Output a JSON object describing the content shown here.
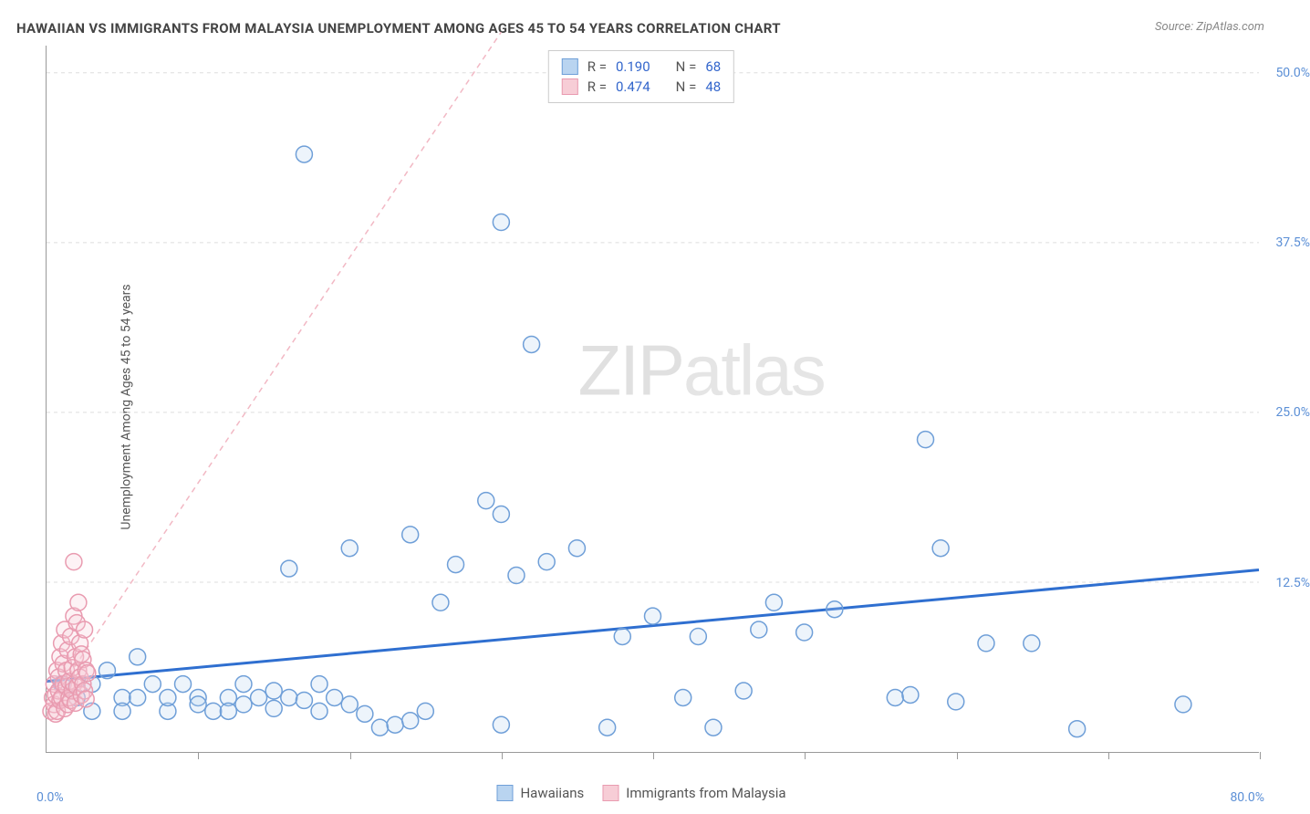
{
  "meta": {
    "title": "HAWAIIAN VS IMMIGRANTS FROM MALAYSIA UNEMPLOYMENT AMONG AGES 45 TO 54 YEARS CORRELATION CHART",
    "source_label": "Source: ZipAtlas.com",
    "y_axis_label": "Unemployment Among Ages 45 to 54 years",
    "watermark_bold": "ZIP",
    "watermark_light": "atlas"
  },
  "chart": {
    "type": "scatter",
    "background_color": "#ffffff",
    "grid_color": "#dddddd",
    "axis_color": "#999999",
    "marker_radius": 9,
    "marker_stroke_width": 1.5,
    "marker_fill_opacity": 0.25,
    "xlim": [
      0,
      80
    ],
    "ylim": [
      0,
      52
    ],
    "x_ticks": [
      10,
      20,
      30,
      40,
      50,
      60,
      70,
      80
    ],
    "x_min_label": "0.0%",
    "x_max_label": "80.0%",
    "y_ticks": [
      {
        "v": 12.5,
        "label": "12.5%"
      },
      {
        "v": 25.0,
        "label": "25.0%"
      },
      {
        "v": 37.5,
        "label": "37.5%"
      },
      {
        "v": 50.0,
        "label": "50.0%"
      }
    ],
    "y_label_color": "#5b8fd6",
    "label_fontsize": 14,
    "title_fontsize": 15
  },
  "legend_top": {
    "rows": [
      {
        "swatch_fill": "#b9d4f0",
        "swatch_stroke": "#6f9fd8",
        "r_label": "R =",
        "r_value": "0.190",
        "n_label": "N =",
        "n_value": "68"
      },
      {
        "swatch_fill": "#f7cdd6",
        "swatch_stroke": "#e99bb0",
        "r_label": "R =",
        "r_value": "0.474",
        "n_label": "N =",
        "n_value": "48"
      }
    ]
  },
  "legend_bottom": {
    "items": [
      {
        "swatch_fill": "#b9d4f0",
        "swatch_stroke": "#6f9fd8",
        "label": "Hawaiians"
      },
      {
        "swatch_fill": "#f7cdd6",
        "swatch_stroke": "#e99bb0",
        "label": "Immigrants from Malaysia"
      }
    ]
  },
  "series": [
    {
      "name": "Hawaiians",
      "color_stroke": "#6f9fd8",
      "color_fill": "#b9d4f0",
      "trend": {
        "x1": 0,
        "y1": 5.2,
        "x2": 80,
        "y2": 13.4,
        "stroke": "#2f6fd0",
        "width": 3,
        "dash": "none"
      },
      "points": [
        [
          1,
          5
        ],
        [
          2,
          4
        ],
        [
          3,
          5
        ],
        [
          3,
          3
        ],
        [
          4,
          6
        ],
        [
          5,
          4
        ],
        [
          5,
          3
        ],
        [
          6,
          7
        ],
        [
          6,
          4
        ],
        [
          7,
          5
        ],
        [
          8,
          3
        ],
        [
          8,
          4
        ],
        [
          9,
          5
        ],
        [
          10,
          4
        ],
        [
          10,
          3.5
        ],
        [
          11,
          3
        ],
        [
          12,
          4
        ],
        [
          12,
          3
        ],
        [
          13,
          5
        ],
        [
          13,
          3.5
        ],
        [
          14,
          4
        ],
        [
          15,
          3.2
        ],
        [
          15,
          4.5
        ],
        [
          16,
          13.5
        ],
        [
          16,
          4
        ],
        [
          17,
          3.8
        ],
        [
          18,
          5
        ],
        [
          18,
          3
        ],
        [
          19,
          4
        ],
        [
          20,
          3.5
        ],
        [
          20,
          15
        ],
        [
          21,
          2.8
        ],
        [
          22,
          1.8
        ],
        [
          23,
          2
        ],
        [
          24,
          2.3
        ],
        [
          24,
          16
        ],
        [
          25,
          3
        ],
        [
          26,
          11
        ],
        [
          27,
          13.8
        ],
        [
          17,
          44
        ],
        [
          29,
          18.5
        ],
        [
          30,
          39
        ],
        [
          30,
          17.5
        ],
        [
          30,
          2
        ],
        [
          31,
          13
        ],
        [
          32,
          30
        ],
        [
          33,
          14
        ],
        [
          35,
          15
        ],
        [
          37,
          1.8
        ],
        [
          38,
          8.5
        ],
        [
          40,
          10
        ],
        [
          42,
          4
        ],
        [
          43,
          8.5
        ],
        [
          44,
          1.8
        ],
        [
          46,
          4.5
        ],
        [
          47,
          9
        ],
        [
          48,
          11
        ],
        [
          50,
          8.8
        ],
        [
          52,
          10.5
        ],
        [
          58,
          23
        ],
        [
          59,
          15
        ],
        [
          56,
          4
        ],
        [
          60,
          3.7
        ],
        [
          62,
          8
        ],
        [
          65,
          8
        ],
        [
          68,
          1.7
        ],
        [
          75,
          3.5
        ],
        [
          57,
          4.2
        ]
      ]
    },
    {
      "name": "Immigrants from Malaysia",
      "color_stroke": "#e99bb0",
      "color_fill": "#f7cdd6",
      "trend": {
        "x1": 0,
        "y1": 3.2,
        "x2": 30,
        "y2": 53,
        "stroke": "#f2b8c4",
        "width": 1.5,
        "dash": "6,5"
      },
      "points": [
        [
          0.3,
          3
        ],
        [
          0.4,
          4
        ],
        [
          0.5,
          5
        ],
        [
          0.5,
          3.5
        ],
        [
          0.6,
          4.2
        ],
        [
          0.6,
          2.8
        ],
        [
          0.7,
          6
        ],
        [
          0.7,
          3
        ],
        [
          0.8,
          5.5
        ],
        [
          0.8,
          4.5
        ],
        [
          0.9,
          7
        ],
        [
          0.9,
          3.8
        ],
        [
          1.0,
          8
        ],
        [
          1.0,
          4
        ],
        [
          1.1,
          5
        ],
        [
          1.1,
          6.5
        ],
        [
          1.2,
          3.2
        ],
        [
          1.2,
          9
        ],
        [
          1.3,
          4.8
        ],
        [
          1.3,
          6
        ],
        [
          1.4,
          3.5
        ],
        [
          1.4,
          7.5
        ],
        [
          1.5,
          5.2
        ],
        [
          1.5,
          4
        ],
        [
          1.6,
          8.5
        ],
        [
          1.6,
          3.8
        ],
        [
          1.7,
          6.2
        ],
        [
          1.7,
          4.5
        ],
        [
          1.8,
          10
        ],
        [
          1.8,
          5
        ],
        [
          1.9,
          7
        ],
        [
          1.9,
          3.6
        ],
        [
          2.0,
          9.5
        ],
        [
          2.0,
          4.8
        ],
        [
          2.1,
          6
        ],
        [
          2.1,
          11
        ],
        [
          2.2,
          5.5
        ],
        [
          2.2,
          8
        ],
        [
          2.3,
          4.2
        ],
        [
          2.3,
          7.2
        ],
        [
          2.4,
          6.8
        ],
        [
          2.4,
          5
        ],
        [
          1.8,
          14
        ],
        [
          2.5,
          4.5
        ],
        [
          2.5,
          9
        ],
        [
          2.6,
          6
        ],
        [
          2.6,
          3.9
        ],
        [
          2.7,
          5.8
        ]
      ]
    }
  ]
}
